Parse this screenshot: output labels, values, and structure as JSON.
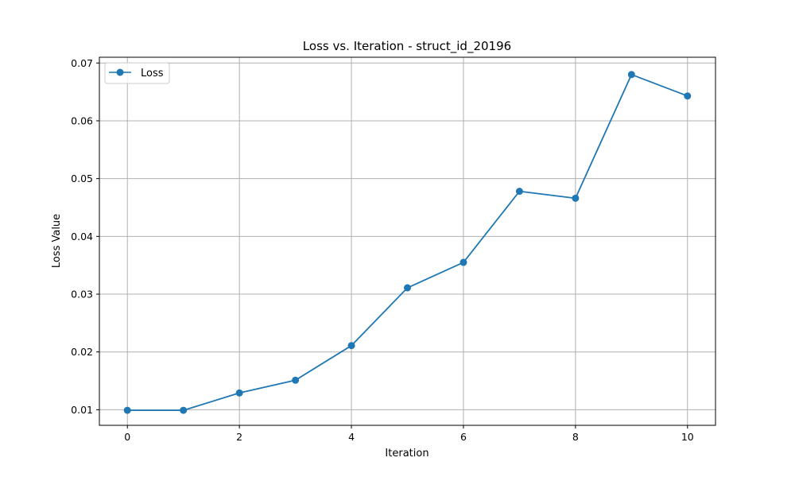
{
  "chart_data": {
    "type": "line",
    "title": "Loss vs. Iteration - struct_id_20196",
    "xlabel": "Iteration",
    "ylabel": "Loss Value",
    "x": [
      0,
      1,
      2,
      3,
      4,
      5,
      6,
      7,
      8,
      9,
      10
    ],
    "series": [
      {
        "name": "Loss",
        "color": "#1f77b4",
        "marker": "circle",
        "values": [
          0.0099,
          0.0099,
          0.0129,
          0.0151,
          0.0211,
          0.0311,
          0.0355,
          0.0478,
          0.0466,
          0.068,
          0.0643
        ]
      }
    ],
    "xlim": [
      -0.5,
      10.5
    ],
    "ylim": [
      0.0073,
      0.071
    ],
    "xticks": [
      0,
      2,
      4,
      6,
      8,
      10
    ],
    "xtick_labels": [
      "0",
      "2",
      "4",
      "6",
      "8",
      "10"
    ],
    "yticks": [
      0.01,
      0.02,
      0.03,
      0.04,
      0.05,
      0.06,
      0.07
    ],
    "ytick_labels": [
      "0.01",
      "0.02",
      "0.03",
      "0.04",
      "0.05",
      "0.06",
      "0.07"
    ],
    "grid": true,
    "legend_position": "top-left",
    "colors": {
      "grid": "#b0b0b0",
      "axes": "#000000"
    }
  }
}
